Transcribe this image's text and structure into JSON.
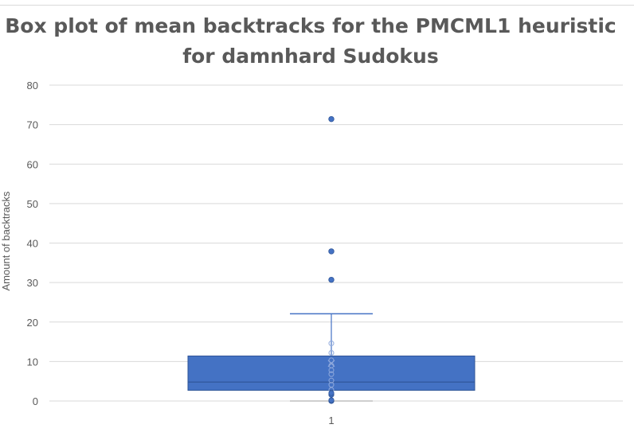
{
  "chart_data": {
    "type": "box",
    "title_line1": "Box plot of mean backtracks for the PMCML1 heuristic",
    "title_line2": "for damnhard Sudokus",
    "ylabel": "Amount of backtracks",
    "xlabel": "",
    "categories": [
      "1"
    ],
    "ylim": [
      0,
      80
    ],
    "yticks": [
      0,
      10,
      20,
      30,
      40,
      50,
      60,
      70,
      80
    ],
    "grid": true,
    "series": [
      {
        "category": "1",
        "color": "#4472c4",
        "min": 0,
        "q1": 2.7,
        "median": 4.8,
        "q3": 11.4,
        "whisker_high": 22.1,
        "mean": 9.5,
        "outliers": [
          30.7,
          37.9,
          71.4
        ],
        "points": [
          0,
          0.2,
          1.6,
          2.0,
          2.8,
          4.1,
          5.2,
          6.8,
          7.8,
          9.0,
          10.3,
          12.2,
          14.6
        ]
      }
    ]
  }
}
